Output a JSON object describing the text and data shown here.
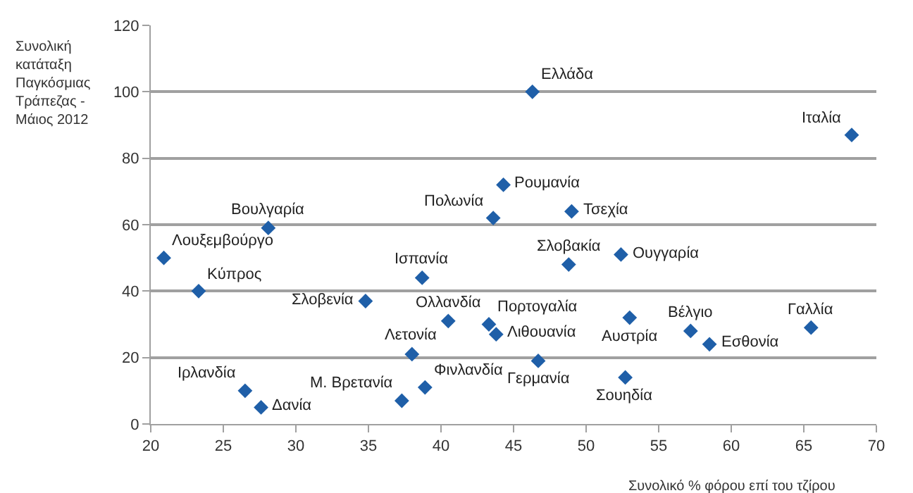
{
  "chart_data": {
    "type": "scatter",
    "xlabel": "Συνολικό % φόρου επί του τζίρου",
    "ylabel": "Συνολική κατάταξη Παγκόσμιας Τράπεζας - Μάιος 2012",
    "x": [
      20.9,
      23.3,
      28.1,
      26.5,
      27.6,
      34.8,
      38.7,
      38.0,
      37.3,
      38.9,
      40.5,
      43.3,
      43.8,
      43.6,
      44.3,
      46.3,
      46.7,
      48.8,
      49.0,
      52.4,
      52.7,
      53.0,
      57.2,
      58.5,
      65.5,
      68.3
    ],
    "values": [
      50,
      40,
      59,
      10,
      5,
      37,
      44,
      21,
      7,
      11,
      31,
      30,
      27,
      62,
      72,
      100,
      19,
      48,
      64,
      51,
      14,
      32,
      28,
      24,
      29,
      87
    ],
    "annotations": [
      {
        "text": "Λουξεμβούργο",
        "x": 20.9,
        "y": 50
      },
      {
        "text": "Κύπρος",
        "x": 23.3,
        "y": 40
      },
      {
        "text": "Βουλγαρία",
        "x": 28.1,
        "y": 59
      },
      {
        "text": "Ιρλανδία",
        "x": 26.5,
        "y": 10
      },
      {
        "text": "Δανία",
        "x": 27.6,
        "y": 5
      },
      {
        "text": "Σλοβενία",
        "x": 34.8,
        "y": 37
      },
      {
        "text": "Ισπανία",
        "x": 38.7,
        "y": 44
      },
      {
        "text": "Λετονία",
        "x": 38.0,
        "y": 21
      },
      {
        "text": "Μ. Βρετανία",
        "x": 37.3,
        "y": 7
      },
      {
        "text": "Φινλανδία",
        "x": 38.9,
        "y": 11
      },
      {
        "text": "Ολλανδία",
        "x": 40.5,
        "y": 31
      },
      {
        "text": "Πορτογαλία",
        "x": 43.3,
        "y": 30
      },
      {
        "text": "Λιθουανία",
        "x": 43.8,
        "y": 27
      },
      {
        "text": "Πολωνία",
        "x": 43.6,
        "y": 62
      },
      {
        "text": "Ρουμανία",
        "x": 44.3,
        "y": 72
      },
      {
        "text": "Ελλάδα",
        "x": 46.3,
        "y": 100
      },
      {
        "text": "Γερμανία",
        "x": 46.7,
        "y": 19
      },
      {
        "text": "Σλοβακία",
        "x": 48.8,
        "y": 48
      },
      {
        "text": "Τσεχία",
        "x": 49.0,
        "y": 64
      },
      {
        "text": "Ουγγαρία",
        "x": 52.4,
        "y": 51
      },
      {
        "text": "Σουηδία",
        "x": 52.7,
        "y": 14
      },
      {
        "text": "Αυστρία",
        "x": 53.0,
        "y": 32
      },
      {
        "text": "Βέλγιο",
        "x": 57.2,
        "y": 28
      },
      {
        "text": "Εσθονία",
        "x": 58.5,
        "y": 24
      },
      {
        "text": "Γαλλία",
        "x": 65.5,
        "y": 29
      },
      {
        "text": "Ιταλία",
        "x": 68.3,
        "y": 87
      }
    ],
    "color": "#1f5fa8",
    "marker": "diamond",
    "xlim": [
      20,
      70
    ],
    "xticks": [
      20,
      25,
      30,
      35,
      40,
      45,
      50,
      55,
      60,
      65,
      70
    ],
    "ylim": [
      0,
      120
    ],
    "yticks": [
      0,
      20,
      40,
      60,
      80,
      100,
      120
    ],
    "grid": "y",
    "legend": false
  }
}
